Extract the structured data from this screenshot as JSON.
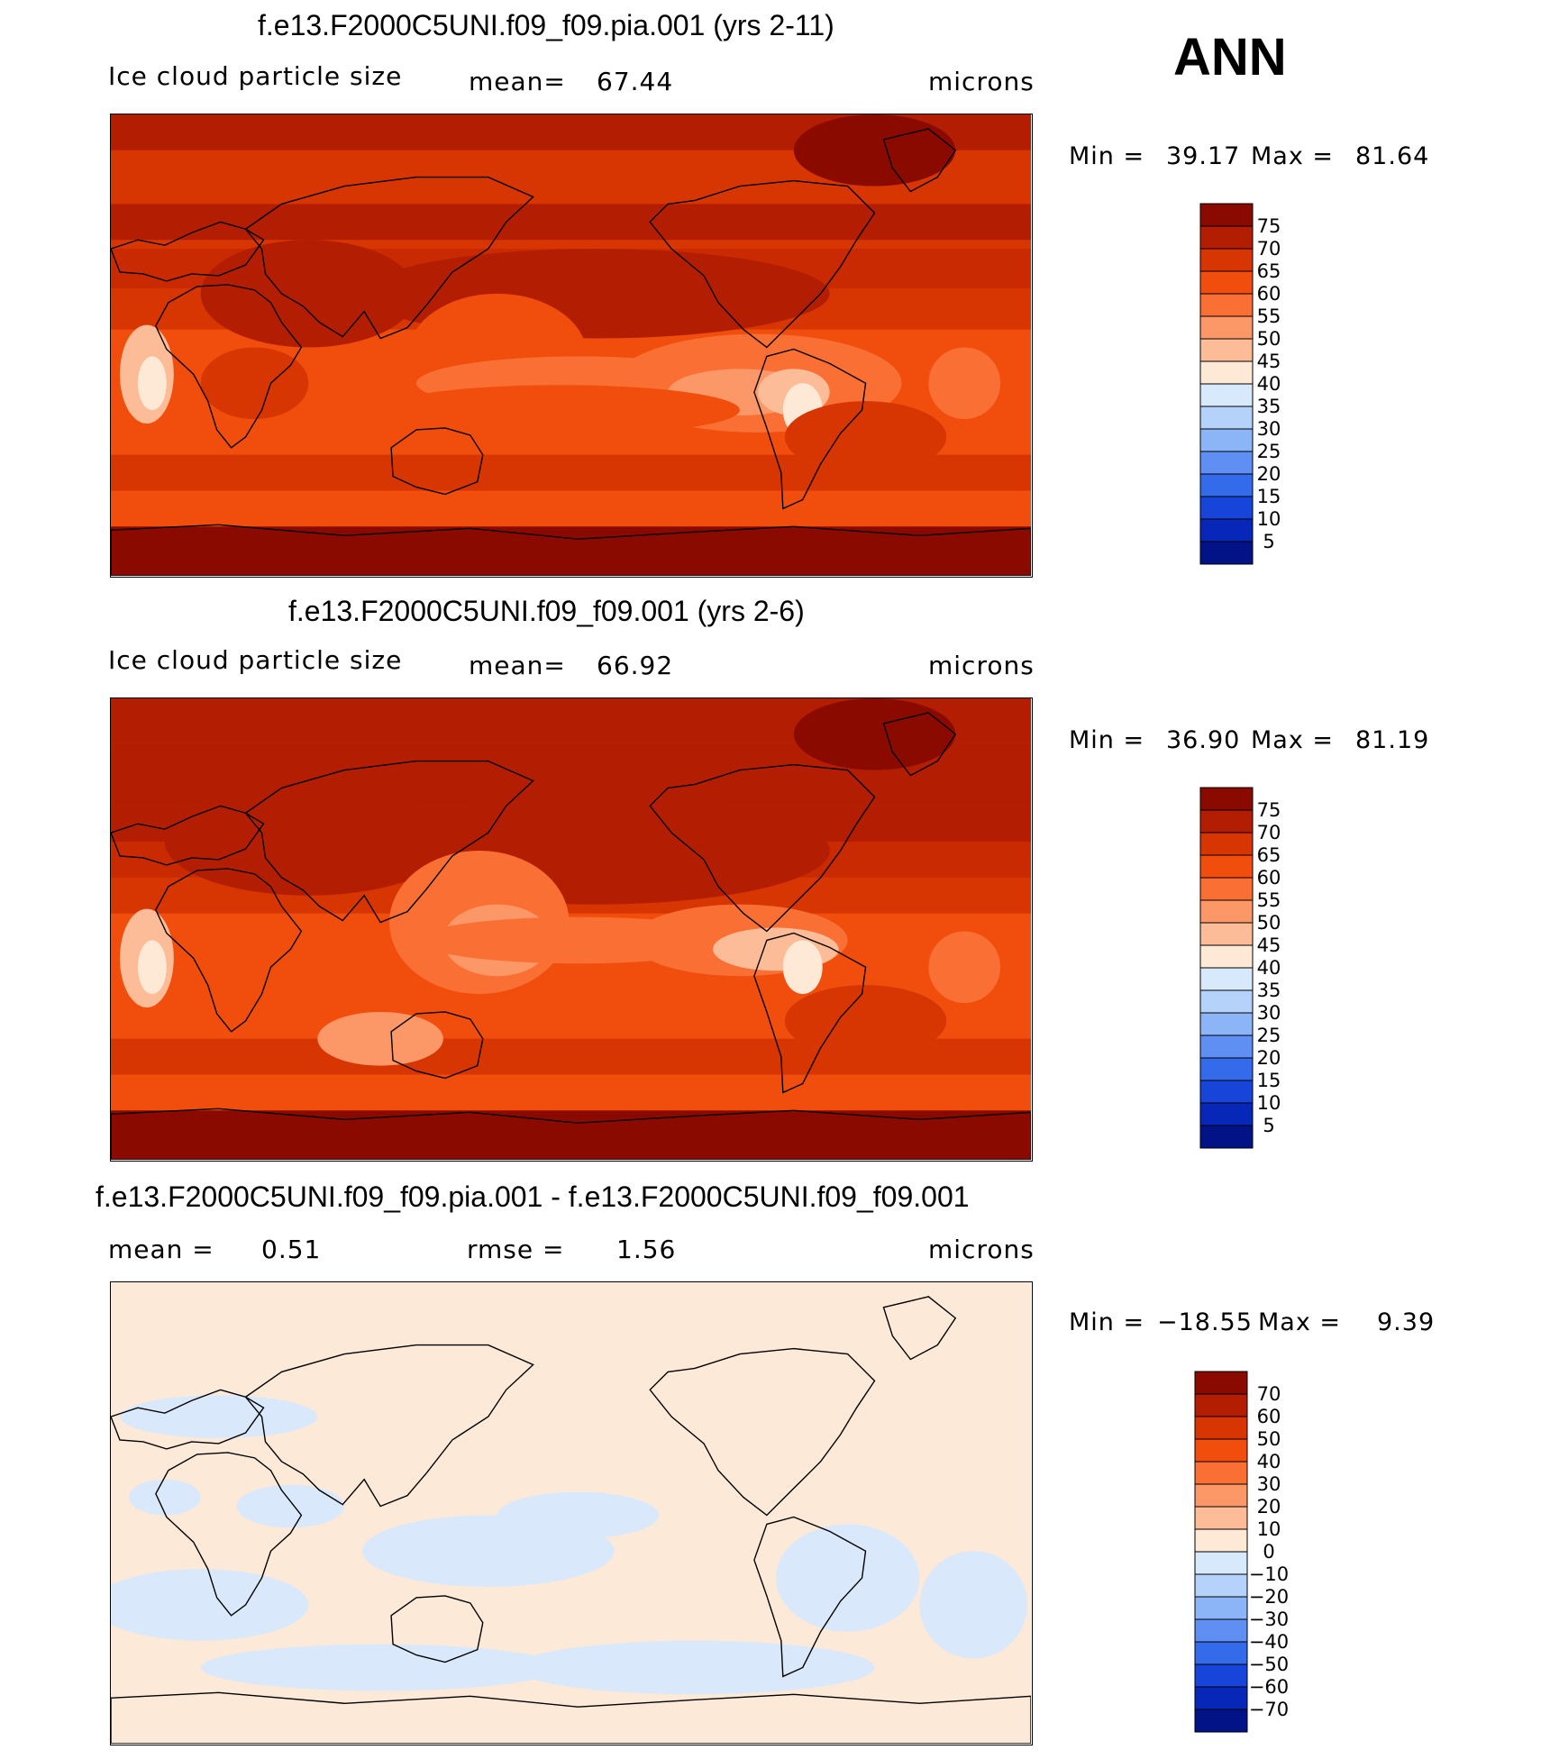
{
  "header": {
    "season": "ANN"
  },
  "chart_data": [
    {
      "type": "heatmap",
      "title": "f.e13.F2000C5UNI.f09_f09.pia.001 (yrs 2-11)",
      "variable": "Ice cloud particle size",
      "stat_label": "mean=",
      "stat_value": "67.44",
      "units": "microns",
      "min_label": "Min =",
      "min_value": "39.17",
      "max_label": "Max =",
      "max_value": "81.64",
      "mean": 67.44,
      "min": 39.17,
      "max": 81.64,
      "levels": [
        "75",
        "70",
        "65",
        "60",
        "55",
        "50",
        "45",
        "40",
        "35",
        "30",
        "25",
        "20",
        "15",
        "10",
        "5"
      ],
      "colors": [
        "#8a0a00",
        "#b31e02",
        "#d73502",
        "#f14d0c",
        "#fa7034",
        "#fc9868",
        "#fdbc98",
        "#fee8d6",
        "#d8e9fb",
        "#b5d3fa",
        "#8cb5f7",
        "#5f8ff2",
        "#346bea",
        "#1744d9",
        "#0627b8",
        "#011387"
      ]
    },
    {
      "type": "heatmap",
      "title": "f.e13.F2000C5UNI.f09_f09.001 (yrs 2-6)",
      "variable": "Ice cloud particle size",
      "stat_label": "mean=",
      "stat_value": "66.92",
      "units": "microns",
      "min_label": "Min =",
      "min_value": "36.90",
      "max_label": "Max =",
      "max_value": "81.19",
      "mean": 66.92,
      "min": 36.9,
      "max": 81.19,
      "levels": [
        "75",
        "70",
        "65",
        "60",
        "55",
        "50",
        "45",
        "40",
        "35",
        "30",
        "25",
        "20",
        "15",
        "10",
        "5"
      ],
      "colors": [
        "#8a0a00",
        "#b31e02",
        "#d73502",
        "#f14d0c",
        "#fa7034",
        "#fc9868",
        "#fdbc98",
        "#fee8d6",
        "#d8e9fb",
        "#b5d3fa",
        "#8cb5f7",
        "#5f8ff2",
        "#346bea",
        "#1744d9",
        "#0627b8",
        "#011387"
      ]
    },
    {
      "type": "heatmap",
      "title": "f.e13.F2000C5UNI.f09_f09.pia.001 - f.e13.F2000C5UNI.f09_f09.001",
      "stat1_label": "mean =",
      "stat1_value": "0.51",
      "stat2_label": "rmse =",
      "stat2_value": "1.56",
      "units": "microns",
      "min_label": "Min =",
      "min_value": "−18.55",
      "max_label": "Max =",
      "max_value": "9.39",
      "mean": 0.51,
      "rmse": 1.56,
      "min": -18.55,
      "max": 9.39,
      "levels": [
        "70",
        "60",
        "50",
        "40",
        "30",
        "20",
        "10",
        "0",
        "−10",
        "−20",
        "−30",
        "−40",
        "−50",
        "−60",
        "−70"
      ],
      "colors": [
        "#8a0a00",
        "#b31e02",
        "#d73502",
        "#f14d0c",
        "#fa7034",
        "#fc9868",
        "#fdbc98",
        "#fee8d6",
        "#d8e9fb",
        "#b5d3fa",
        "#8cb5f7",
        "#5f8ff2",
        "#346bea",
        "#1744d9",
        "#0627b8",
        "#011387"
      ]
    }
  ]
}
